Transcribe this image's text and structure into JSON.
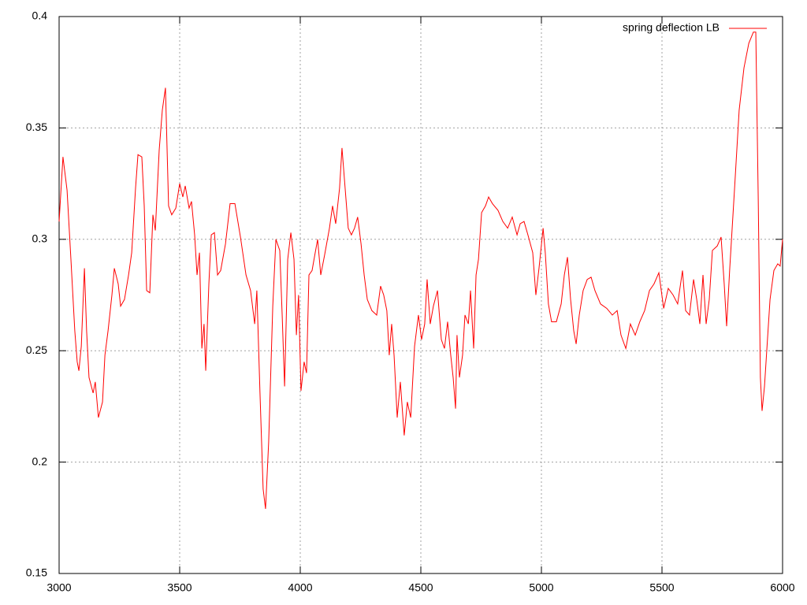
{
  "chart_data": {
    "type": "line",
    "x": [
      3000,
      3016,
      3033,
      3049,
      3065,
      3075,
      3082,
      3092,
      3105,
      3114,
      3124,
      3141,
      3150,
      3163,
      3180,
      3190,
      3203,
      3219,
      3229,
      3245,
      3255,
      3271,
      3288,
      3301,
      3317,
      3327,
      3343,
      3353,
      3363,
      3376,
      3389,
      3399,
      3415,
      3428,
      3441,
      3454,
      3467,
      3484,
      3500,
      3513,
      3523,
      3539,
      3549,
      3562,
      3572,
      3582,
      3592,
      3601,
      3608,
      3621,
      3631,
      3644,
      3657,
      3670,
      3690,
      3709,
      3729,
      3752,
      3775,
      3794,
      3811,
      3820,
      3833,
      3846,
      3856,
      3869,
      3886,
      3899,
      3915,
      3925,
      3935,
      3948,
      3961,
      3974,
      3984,
      3993,
      4003,
      4016,
      4026,
      4036,
      4049,
      4062,
      4072,
      4085,
      4101,
      4121,
      4134,
      4147,
      4163,
      4173,
      4186,
      4199,
      4212,
      4225,
      4238,
      4252,
      4265,
      4278,
      4297,
      4317,
      4333,
      4346,
      4359,
      4369,
      4379,
      4389,
      4402,
      4415,
      4431,
      4444,
      4458,
      4474,
      4490,
      4503,
      4516,
      4526,
      4539,
      4552,
      4569,
      4585,
      4598,
      4611,
      4624,
      4634,
      4644,
      4650,
      4660,
      4673,
      4683,
      4697,
      4706,
      4719,
      4729,
      4739,
      4752,
      4768,
      4781,
      4797,
      4820,
      4840,
      4860,
      4879,
      4899,
      4912,
      4928,
      4944,
      4964,
      4977,
      4990,
      5007,
      5016,
      5029,
      5042,
      5062,
      5082,
      5095,
      5108,
      5121,
      5134,
      5144,
      5157,
      5173,
      5190,
      5206,
      5222,
      5245,
      5271,
      5294,
      5314,
      5330,
      5350,
      5369,
      5389,
      5408,
      5428,
      5448,
      5467,
      5487,
      5507,
      5526,
      5546,
      5565,
      5585,
      5598,
      5614,
      5631,
      5644,
      5657,
      5670,
      5683,
      5696,
      5709,
      5729,
      5745,
      5758,
      5768,
      5781,
      5801,
      5820,
      5840,
      5860,
      5879,
      5889,
      5899,
      5908,
      5915,
      5925,
      5935,
      5948,
      5964,
      5980,
      5990,
      6000
    ],
    "series": [
      {
        "name": "spring deflection LB",
        "color": "#ff0000",
        "values": [
          0.308,
          0.337,
          0.322,
          0.291,
          0.259,
          0.245,
          0.241,
          0.252,
          0.287,
          0.259,
          0.238,
          0.231,
          0.236,
          0.22,
          0.227,
          0.248,
          0.259,
          0.275,
          0.287,
          0.28,
          0.27,
          0.273,
          0.284,
          0.294,
          0.323,
          0.338,
          0.337,
          0.315,
          0.277,
          0.276,
          0.311,
          0.304,
          0.34,
          0.358,
          0.368,
          0.315,
          0.311,
          0.314,
          0.325,
          0.319,
          0.324,
          0.314,
          0.317,
          0.302,
          0.284,
          0.294,
          0.251,
          0.262,
          0.241,
          0.28,
          0.302,
          0.303,
          0.284,
          0.286,
          0.298,
          0.316,
          0.316,
          0.301,
          0.284,
          0.277,
          0.262,
          0.277,
          0.231,
          0.188,
          0.179,
          0.209,
          0.27,
          0.3,
          0.295,
          0.266,
          0.234,
          0.291,
          0.303,
          0.291,
          0.257,
          0.275,
          0.232,
          0.245,
          0.24,
          0.284,
          0.286,
          0.294,
          0.3,
          0.284,
          0.293,
          0.305,
          0.315,
          0.307,
          0.323,
          0.341,
          0.323,
          0.305,
          0.302,
          0.305,
          0.31,
          0.298,
          0.284,
          0.273,
          0.268,
          0.266,
          0.279,
          0.275,
          0.268,
          0.248,
          0.262,
          0.248,
          0.22,
          0.236,
          0.212,
          0.227,
          0.22,
          0.252,
          0.266,
          0.255,
          0.262,
          0.282,
          0.262,
          0.27,
          0.277,
          0.255,
          0.251,
          0.263,
          0.248,
          0.238,
          0.224,
          0.257,
          0.238,
          0.248,
          0.266,
          0.262,
          0.277,
          0.251,
          0.284,
          0.291,
          0.312,
          0.315,
          0.319,
          0.316,
          0.313,
          0.308,
          0.305,
          0.31,
          0.302,
          0.307,
          0.308,
          0.302,
          0.294,
          0.275,
          0.287,
          0.305,
          0.294,
          0.271,
          0.263,
          0.263,
          0.271,
          0.284,
          0.292,
          0.273,
          0.259,
          0.253,
          0.266,
          0.277,
          0.282,
          0.283,
          0.277,
          0.271,
          0.269,
          0.266,
          0.268,
          0.257,
          0.251,
          0.262,
          0.257,
          0.263,
          0.268,
          0.277,
          0.28,
          0.285,
          0.269,
          0.278,
          0.275,
          0.271,
          0.286,
          0.268,
          0.266,
          0.282,
          0.273,
          0.262,
          0.284,
          0.262,
          0.273,
          0.295,
          0.297,
          0.301,
          0.28,
          0.261,
          0.287,
          0.323,
          0.358,
          0.377,
          0.388,
          0.393,
          0.393,
          0.319,
          0.238,
          0.223,
          0.234,
          0.251,
          0.273,
          0.286,
          0.289,
          0.288,
          0.3
        ]
      }
    ],
    "xlim": [
      3000,
      6000
    ],
    "ylim": [
      0.15,
      0.4
    ],
    "xticks": [
      3000,
      3500,
      4000,
      4500,
      5000,
      5500,
      6000
    ],
    "yticks": [
      0.15,
      0.2,
      0.25,
      0.3,
      0.35,
      0.4
    ],
    "grid": true,
    "legend": "top-right"
  }
}
